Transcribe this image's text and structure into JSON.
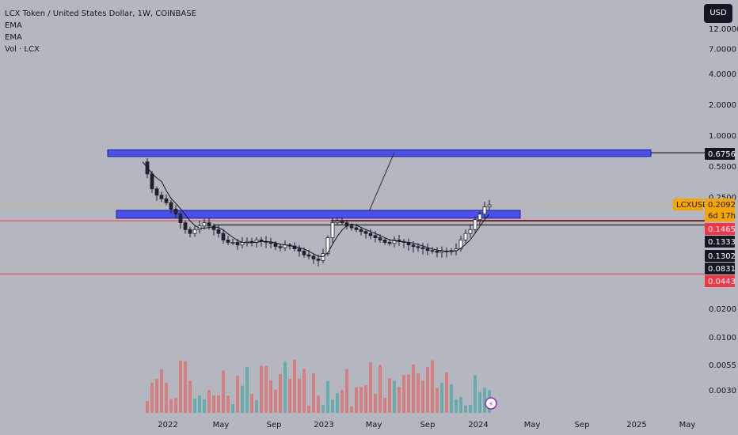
{
  "header": {
    "title": "LCX Token / United States Dollar, 1W, COINBASE",
    "indicators": [
      "EMA",
      "EMA",
      "Vol · LCX"
    ],
    "currency_button": "USD"
  },
  "chart_data": {
    "type": "candlestick",
    "symbol": "LCXUSD",
    "title": "LCX Token / United States Dollar, 1W, COINBASE",
    "price_scale": "log",
    "y_tick_labels": [
      "12.0000",
      "7.0000",
      "4.0000",
      "2.0000",
      "1.0000",
      "0.5000",
      "0.2500"
    ],
    "volume_tick_labels": [
      "0.0200",
      "0.0100",
      "0.0055",
      "0.0030"
    ],
    "x_tick_labels": [
      "2022",
      "May",
      "Sep",
      "2023",
      "May",
      "Sep",
      "2024",
      "May",
      "Sep",
      "2025",
      "May"
    ],
    "price_labels": [
      {
        "text": "0.6756",
        "style": "black"
      },
      {
        "text": "LCXUSD",
        "style": "orange-tag"
      },
      {
        "text": "0.2092",
        "style": "orange"
      },
      {
        "text": "6d 17h",
        "style": "orange"
      },
      {
        "text": "0.1465",
        "style": "red"
      },
      {
        "text": "0.1333",
        "style": "black"
      },
      {
        "text": "0.1302",
        "style": "black"
      },
      {
        "text": "0.0831",
        "style": "black"
      },
      {
        "text": "0.0443",
        "style": "red"
      }
    ],
    "current_price": 0.2092,
    "zones": [
      {
        "from": 0.62,
        "to": 0.72,
        "color": "#3a3ef0"
      },
      {
        "from": 0.155,
        "to": 0.185,
        "color": "#3a3ef0"
      }
    ],
    "horizontal_lines": [
      {
        "price": 0.6756,
        "color": "#000000"
      },
      {
        "price": 0.1465,
        "color": "#000000"
      },
      {
        "price": 0.1333,
        "color": "#000000"
      },
      {
        "price": 0.1465,
        "color": "#f23645"
      },
      {
        "price": 0.0443,
        "color": "#f23645"
      }
    ],
    "colors": {
      "up": "#26a69a",
      "down": "#ef5350",
      "zone": "#3a3ef0",
      "background": "#b4b7bf",
      "current": "#f7a600"
    }
  }
}
